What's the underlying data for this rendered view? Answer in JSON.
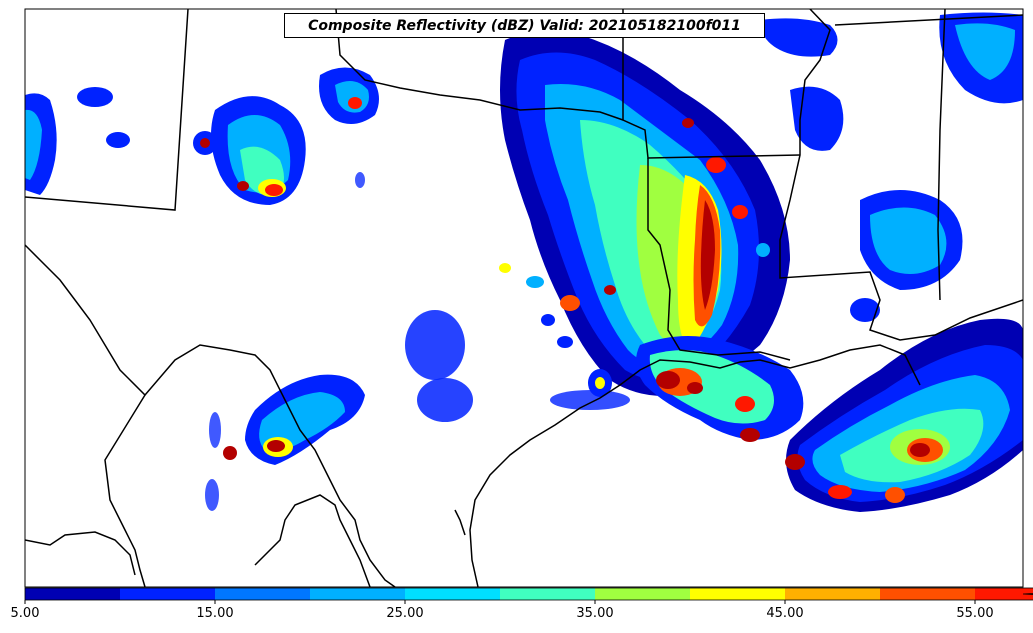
{
  "title": "Composite Reflectivity (dBZ) Valid: 202105182100f011",
  "colorbar": {
    "ticks": [
      "5.00",
      "15.00",
      "25.00",
      "35.00",
      "45.00",
      "55.00"
    ],
    "colors": [
      "#0000b3",
      "#0022ff",
      "#0077ff",
      "#00b0ff",
      "#00dfff",
      "#40ffc0",
      "#a0ff40",
      "#ffff00",
      "#ffb000",
      "#ff5000",
      "#ff1800",
      "#b30000"
    ],
    "extend": "max"
  }
}
